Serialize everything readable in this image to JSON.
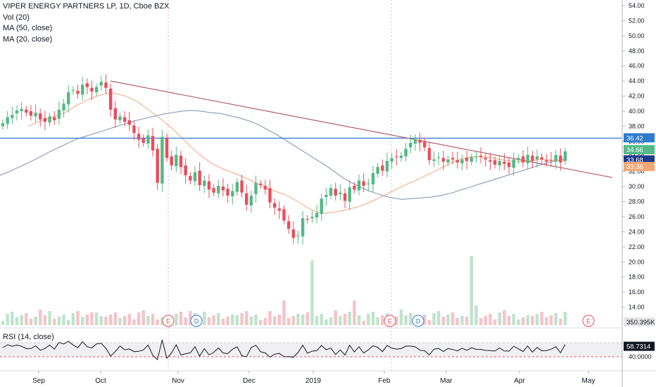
{
  "legend": {
    "title": "VIPER ENERGY PARTNERS LP, 1D, Cboe BZX",
    "vol": "Vol (20)",
    "ma50": "MA (50, close)",
    "ma20": "MA (20, close)"
  },
  "rsi_legend": "RSI (14, close)",
  "price_axis": {
    "min": 12,
    "max": 54,
    "ticks": [
      "54.00",
      "52.00",
      "50.00",
      "48.00",
      "46.00",
      "44.00",
      "42.00",
      "40.00",
      "38.00",
      "36.00",
      "34.00",
      "32.00",
      "30.00",
      "28.00",
      "26.00",
      "24.00",
      "22.00",
      "20.00",
      "18.00",
      "16.00",
      "14.00"
    ],
    "tags": [
      {
        "value": "36.42",
        "color": "#2e7bcf",
        "y_price": 36.42
      },
      {
        "value": "34.66",
        "color": "#53b987",
        "y_price": 34.66
      },
      {
        "value": "33.68",
        "color": "#1e3a8a",
        "y_price": 33.68
      },
      {
        "value": "33.36",
        "color": "#f0a875",
        "y_price": 33.36
      },
      {
        "value": "350.395K",
        "color": "#e6e6e6",
        "y_price": 12.3
      }
    ]
  },
  "rsi_axis": {
    "ticks": [
      "40.0000"
    ],
    "current": "58.7314",
    "band_low": 30,
    "band_high": 70,
    "low_line": "40.0000"
  },
  "x_axis": {
    "labels": [
      "Sep",
      "Oct",
      "Nov",
      "Dec",
      "2019",
      "Feb",
      "Mar",
      "Apr",
      "May"
    ]
  },
  "events": [
    {
      "type": "E",
      "label": "E"
    },
    {
      "type": "D",
      "label": "D"
    },
    {
      "type": "E",
      "label": "E"
    },
    {
      "type": "D",
      "label": "D"
    },
    {
      "type": "E",
      "label": "E"
    }
  ],
  "colors": {
    "up": "#53b987",
    "down": "#eb4d5c",
    "ma50": "#7c8fb3",
    "ma20": "#f4a582",
    "trendline": "#b5606e",
    "hline": "#2e7bcf",
    "vol_up": "#bfe3cc",
    "vol_down": "#f5c3c8"
  },
  "chart_data": {
    "type": "candlestick",
    "horizontal_line": 36.42,
    "trendline": {
      "start": 44.0,
      "end": 32.6
    },
    "closes": [
      38.4,
      39.2,
      39.5,
      40.1,
      40.3,
      39.8,
      39.4,
      39.8,
      38.9,
      38.6,
      39.3,
      38.8,
      40.2,
      41.0,
      42.5,
      42.8,
      42.3,
      43.5,
      43.2,
      42.6,
      43.2,
      43.9,
      43.1,
      40.2,
      38.9,
      39.3,
      38.6,
      38.2,
      37.1,
      36.2,
      35.8,
      36.8,
      34.8,
      30.5,
      36.6,
      33.8,
      32.8,
      34.2,
      32.6,
      31.5,
      30.8,
      31.9,
      30.2,
      30.8,
      29.6,
      29.2,
      30.1,
      29.5,
      28.8,
      29.4,
      30.6,
      29.2,
      27.6,
      28.8,
      30.5,
      30.2,
      29.6,
      27.9,
      27.2,
      26.8,
      25.5,
      24.4,
      23.2,
      23.5,
      25.8,
      25.6,
      26.0,
      26.5,
      28.4,
      28.9,
      29.8,
      28.8,
      29.2,
      28.1,
      29.9,
      29.6,
      30.8,
      30.1,
      30.4,
      31.8,
      32.6,
      32.1,
      33.4,
      33.8,
      33.9,
      34.1,
      35.0,
      35.8,
      36.3,
      35.8,
      35.2,
      33.5,
      33.6,
      33.9,
      33.3,
      33.6,
      33.6,
      33.2,
      33.6,
      33.4,
      33.9,
      33.9,
      33.9,
      33.6,
      33.3,
      32.9,
      33.4,
      33.0,
      32.6,
      33.6,
      33.8,
      33.2,
      34.2,
      33.4,
      34.0,
      33.6,
      33.3,
      33.4,
      34.2,
      33.2,
      34.66
    ],
    "ma50": [
      31.5,
      32.0,
      32.6,
      33.2,
      33.8,
      34.5,
      35.1,
      35.7,
      36.3,
      36.7,
      37.1,
      37.5,
      37.9,
      38.3,
      38.7,
      39.0,
      39.3,
      39.6,
      39.8,
      40.0,
      40.1,
      40.0,
      39.8,
      39.7,
      39.4,
      39.1,
      38.7,
      38.2,
      37.5,
      36.8,
      36.0,
      35.2,
      34.4,
      33.6,
      32.8,
      31.9,
      31.0,
      30.3,
      29.7,
      29.2,
      28.8,
      28.5,
      28.3,
      28.4,
      28.5,
      28.6,
      28.8,
      29.1,
      29.5,
      29.9,
      30.3,
      30.7,
      31.1,
      31.5,
      31.9,
      32.3,
      32.7,
      33.1,
      33.4,
      33.7
    ],
    "ma20": [
      38.0,
      38.7,
      39.2,
      39.8,
      40.8,
      41.6,
      42.2,
      42.4,
      42.0,
      41.2,
      40.0,
      38.8,
      37.4,
      35.8,
      34.3,
      33.1,
      32.3,
      31.7,
      31.0,
      30.2,
      29.5,
      29.0,
      28.1,
      27.1,
      26.4,
      26.6,
      26.9,
      27.3,
      27.9,
      28.7,
      29.5,
      30.3,
      31.0,
      31.8,
      32.6,
      33.4,
      33.9,
      34.0,
      33.8,
      33.5,
      33.3,
      33.4,
      33.6,
      33.5,
      33.4
    ]
  }
}
